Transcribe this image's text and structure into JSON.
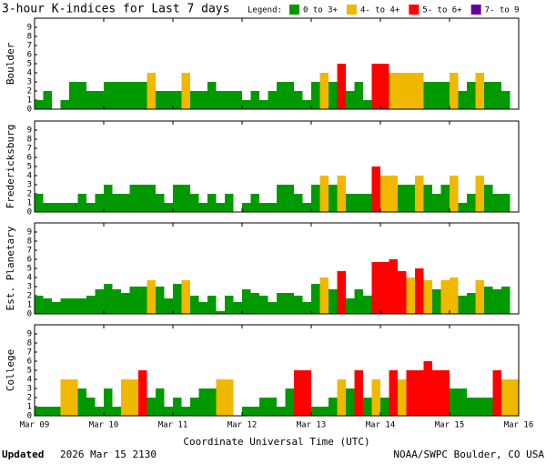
{
  "header": {
    "title": "3-hour K-indices for Last 7 days",
    "legend_title": "Legend:",
    "legend": [
      {
        "label": "0 to 3+",
        "color": "#009900"
      },
      {
        "label": "4- to 4+",
        "color": "#f0b800"
      },
      {
        "label": "5- to 6+",
        "color": "#ff0000"
      },
      {
        "label": "7- to 9",
        "color": "#660099"
      }
    ]
  },
  "x_axis": {
    "labels": [
      "Mar 09",
      "Mar 10",
      "Mar 11",
      "Mar 12",
      "Mar 13",
      "Mar 14",
      "Mar 15",
      "Mar 16"
    ],
    "title": "Coordinate Universal Time (UTC)"
  },
  "footer": {
    "updated_label": "Updated",
    "updated": "2026 Mar 15 2130",
    "source": "NOAA/SWPC Boulder, CO USA"
  },
  "chart_data": [
    {
      "type": "bar",
      "ylabel": "Boulder",
      "ylim": [
        0,
        10
      ],
      "yticks": [
        0,
        1,
        2,
        3,
        4,
        5,
        6,
        7,
        8,
        9
      ],
      "values": [
        1,
        2,
        0,
        1,
        3,
        3,
        2,
        2,
        3,
        3,
        3,
        3,
        3,
        4,
        2,
        2,
        2,
        4,
        2,
        2,
        3,
        2,
        2,
        2,
        1,
        2,
        1,
        2,
        3,
        3,
        2,
        1,
        3,
        4,
        3,
        5,
        2,
        3,
        1,
        5,
        5,
        4,
        4,
        4,
        4,
        3,
        3,
        3,
        4,
        2,
        3,
        4,
        3,
        3,
        2,
        0
      ]
    },
    {
      "type": "bar",
      "ylabel": "Fredericksburg",
      "ylim": [
        0,
        10
      ],
      "yticks": [
        0,
        1,
        2,
        3,
        4,
        5,
        6,
        7,
        8,
        9
      ],
      "values": [
        2,
        1,
        1,
        1,
        1,
        2,
        1,
        2,
        3,
        2,
        2,
        3,
        3,
        3,
        2,
        1,
        3,
        3,
        2,
        1,
        2,
        1,
        2,
        0,
        1,
        2,
        1,
        1,
        3,
        3,
        2,
        1,
        3,
        4,
        3,
        4,
        2,
        2,
        2,
        5,
        4,
        4,
        3,
        3,
        4,
        3,
        2,
        3,
        4,
        1,
        2,
        4,
        3,
        2,
        2,
        0
      ]
    },
    {
      "type": "bar",
      "ylabel": "Est. Planetary",
      "ylim": [
        0,
        10
      ],
      "yticks": [
        0,
        1,
        2,
        3,
        4,
        5,
        6,
        7,
        8,
        9
      ],
      "values": [
        2,
        1.7,
        1.3,
        1.7,
        1.7,
        1.7,
        2,
        2.7,
        3.3,
        2.7,
        2.3,
        3,
        3,
        3.7,
        3,
        1.7,
        3.3,
        3.7,
        2,
        1.3,
        2,
        0.3,
        2,
        1.3,
        2.7,
        2.3,
        2,
        1.3,
        2.3,
        2.3,
        2,
        1.3,
        3.3,
        4,
        2.7,
        4.7,
        1.7,
        2.7,
        2,
        5.7,
        5.7,
        6,
        4.7,
        4,
        5,
        3.7,
        2.7,
        3.7,
        4,
        2,
        2.3,
        3.7,
        3,
        2.7,
        3,
        0
      ]
    },
    {
      "type": "bar",
      "ylabel": "College",
      "ylim": [
        0,
        10
      ],
      "yticks": [
        0,
        1,
        2,
        3,
        4,
        5,
        6,
        7,
        8,
        9
      ],
      "values": [
        1,
        1,
        1,
        4,
        4,
        3,
        2,
        1,
        3,
        1,
        4,
        4,
        5,
        2,
        3,
        1,
        2,
        1,
        2,
        3,
        3,
        4,
        4,
        0,
        1,
        1,
        2,
        2,
        1,
        3,
        5,
        5,
        1,
        1,
        2,
        4,
        3,
        5,
        2,
        4,
        2,
        5,
        4,
        5,
        5,
        6,
        5,
        5,
        3,
        3,
        2,
        2,
        2,
        5,
        4,
        4
      ]
    }
  ]
}
